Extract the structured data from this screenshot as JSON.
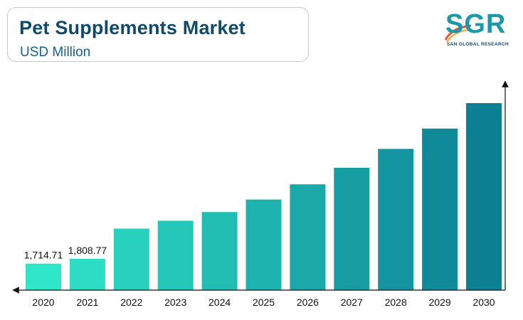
{
  "header": {
    "title": "Pet Supplements Market",
    "subtitle": "USD Million"
  },
  "logo": {
    "mark": "SGR",
    "tagline": "SAN GLOBAL RESEARCH"
  },
  "colors": {
    "bar_start": "#2fe6c8",
    "bar_end": "#0d7f93",
    "title": "#0f4a6b",
    "axis": "#111111"
  },
  "chart_data": {
    "type": "bar",
    "title": "Pet Supplements Market",
    "subtitle": "USD Million",
    "categories": [
      "2020",
      "2021",
      "2022",
      "2023",
      "2024",
      "2025",
      "2026",
      "2027",
      "2028",
      "2029",
      "2030"
    ],
    "values": [
      1714.71,
      1808.77,
      2395,
      2548,
      2716,
      2960,
      3255,
      3577,
      3943,
      4337,
      4832
    ],
    "data_labels": [
      "1,714.71",
      "1,808.77",
      null,
      null,
      null,
      null,
      null,
      null,
      null,
      null,
      null
    ],
    "xlabel": "",
    "ylabel": "",
    "ylim": [
      1200,
      5100
    ],
    "grid": false,
    "legend": "none"
  }
}
